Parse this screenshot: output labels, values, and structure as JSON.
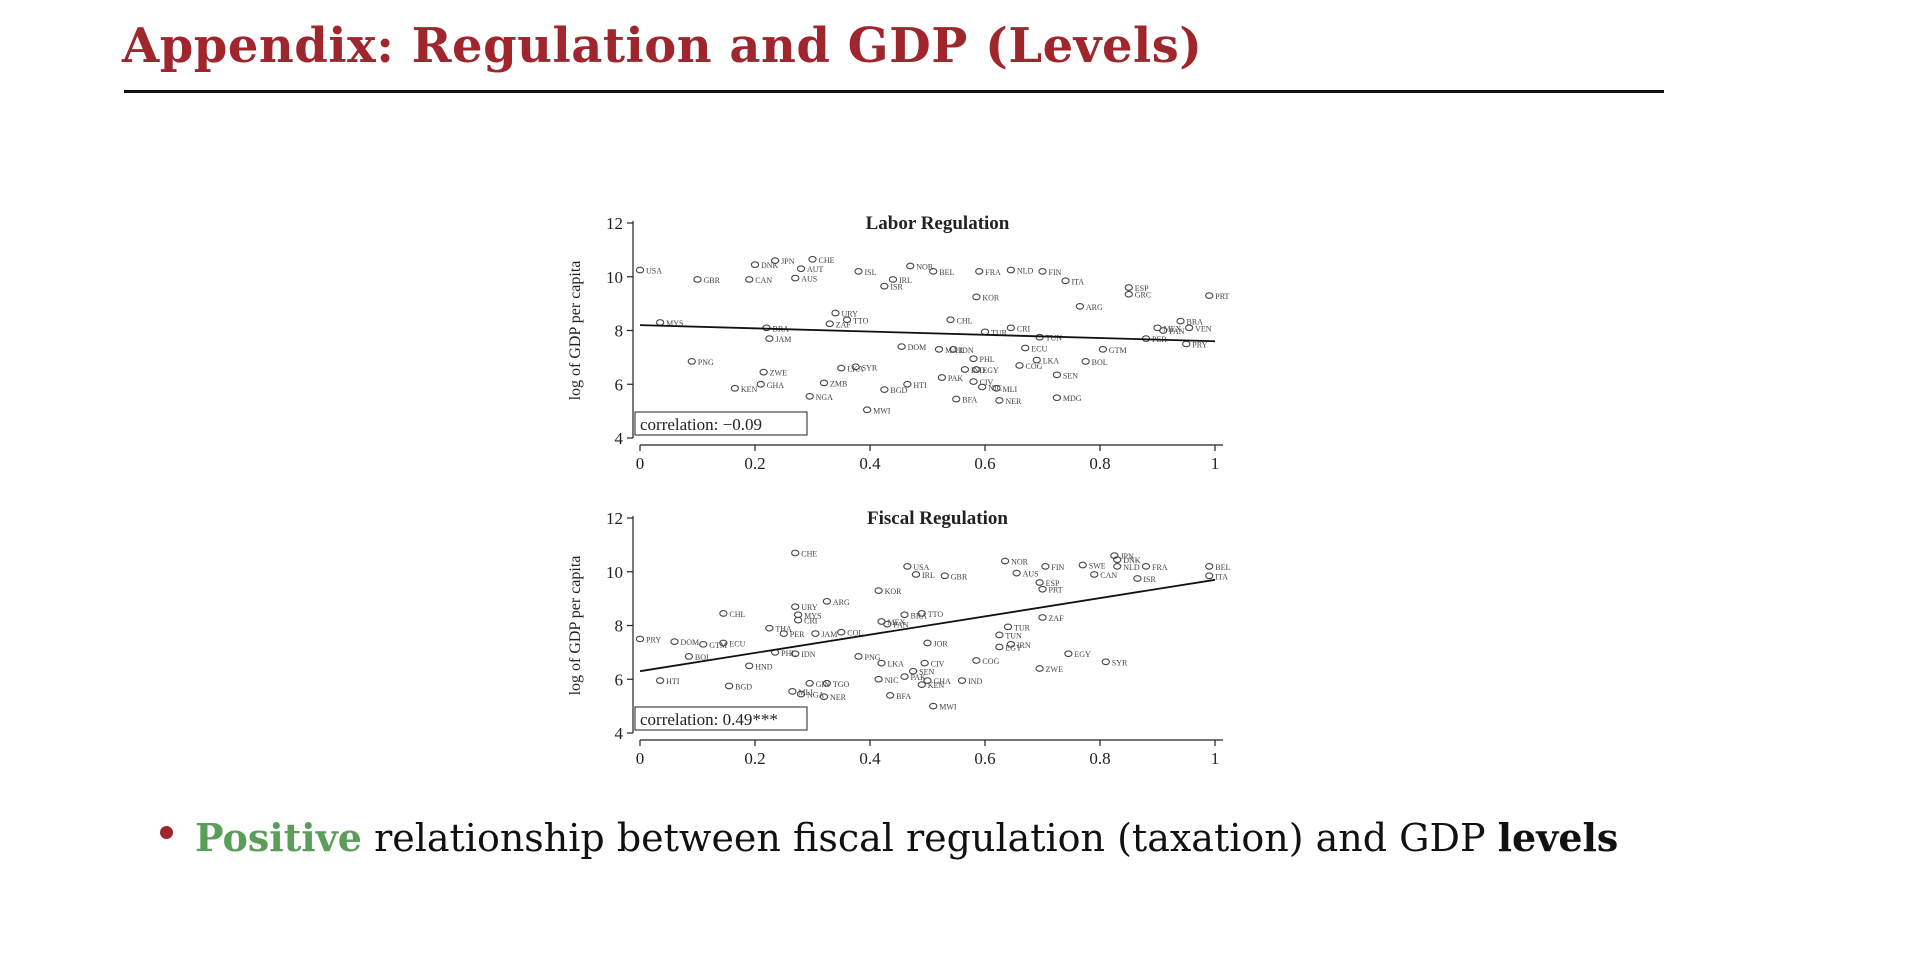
{
  "slide": {
    "title": "Appendix: Regulation and GDP (Levels)",
    "bullet": {
      "highlight": "Positive",
      "middle": " relationship between fiscal regulation (taxation) and GDP ",
      "bold_end": "levels"
    },
    "colors": {
      "title": "#a0262d",
      "highlight": "#5a9e5a"
    }
  },
  "chart_data": [
    {
      "type": "scatter",
      "title": "Labor Regulation",
      "ylabel": "log of GDP per capita",
      "xlim": [
        0,
        1
      ],
      "ylim": [
        4,
        12
      ],
      "xticks": [
        "0",
        "0.2",
        "0.4",
        "0.6",
        "0.8",
        "1"
      ],
      "yticks": [
        "4",
        "6",
        "8",
        "10",
        "12"
      ],
      "annotation": "correlation: −0.09",
      "fit_line": {
        "x": [
          0,
          1
        ],
        "y": [
          8.2,
          7.6
        ]
      },
      "points": [
        {
          "label": "USA",
          "x": 0.0,
          "y": 10.25
        },
        {
          "label": "GBR",
          "x": 0.1,
          "y": 9.9
        },
        {
          "label": "CAN",
          "x": 0.19,
          "y": 9.9
        },
        {
          "label": "DNK",
          "x": 0.2,
          "y": 10.45
        },
        {
          "label": "JPN",
          "x": 0.235,
          "y": 10.6
        },
        {
          "label": "AUT",
          "x": 0.28,
          "y": 10.3
        },
        {
          "label": "AUS",
          "x": 0.27,
          "y": 9.95
        },
        {
          "label": "CHE",
          "x": 0.3,
          "y": 10.65
        },
        {
          "label": "ISL",
          "x": 0.38,
          "y": 10.2
        },
        {
          "label": "IRL",
          "x": 0.44,
          "y": 9.9
        },
        {
          "label": "ISR",
          "x": 0.425,
          "y": 9.65
        },
        {
          "label": "NOR",
          "x": 0.47,
          "y": 10.4
        },
        {
          "label": "BEL",
          "x": 0.51,
          "y": 10.2
        },
        {
          "label": "FRA",
          "x": 0.59,
          "y": 10.2
        },
        {
          "label": "NLD",
          "x": 0.645,
          "y": 10.25
        },
        {
          "label": "FIN",
          "x": 0.7,
          "y": 10.2
        },
        {
          "label": "ITA",
          "x": 0.74,
          "y": 9.85
        },
        {
          "label": "ESP",
          "x": 0.85,
          "y": 9.6
        },
        {
          "label": "GRC",
          "x": 0.85,
          "y": 9.35
        },
        {
          "label": "KOR",
          "x": 0.585,
          "y": 9.25
        },
        {
          "label": "ARG",
          "x": 0.765,
          "y": 8.9
        },
        {
          "label": "PRT",
          "x": 0.99,
          "y": 9.3
        },
        {
          "label": "MYS",
          "x": 0.035,
          "y": 8.3
        },
        {
          "label": "URY",
          "x": 0.34,
          "y": 8.65
        },
        {
          "label": "TTO",
          "x": 0.36,
          "y": 8.4
        },
        {
          "label": "ZAF",
          "x": 0.33,
          "y": 8.25
        },
        {
          "label": "BRA",
          "x": 0.22,
          "y": 8.1
        },
        {
          "label": "JAM",
          "x": 0.225,
          "y": 7.7
        },
        {
          "label": "CHL",
          "x": 0.54,
          "y": 8.4
        },
        {
          "label": "TUR",
          "x": 0.6,
          "y": 7.95
        },
        {
          "label": "CRI",
          "x": 0.645,
          "y": 8.1
        },
        {
          "label": "TUN",
          "x": 0.695,
          "y": 7.75
        },
        {
          "label": "MEX",
          "x": 0.9,
          "y": 8.1
        },
        {
          "label": "PAN",
          "x": 0.91,
          "y": 8.0
        },
        {
          "label": "BRA",
          "x": 0.94,
          "y": 8.35
        },
        {
          "label": "VEN",
          "x": 0.955,
          "y": 8.1
        },
        {
          "label": "PER",
          "x": 0.88,
          "y": 7.7
        },
        {
          "label": "PRY",
          "x": 0.95,
          "y": 7.5
        },
        {
          "label": "DOM",
          "x": 0.455,
          "y": 7.4
        },
        {
          "label": "MAR",
          "x": 0.52,
          "y": 7.3
        },
        {
          "label": "IDN",
          "x": 0.545,
          "y": 7.3
        },
        {
          "label": "ECU",
          "x": 0.67,
          "y": 7.35
        },
        {
          "label": "GTM",
          "x": 0.805,
          "y": 7.3
        },
        {
          "label": "PHL",
          "x": 0.58,
          "y": 6.95
        },
        {
          "label": "COG",
          "x": 0.66,
          "y": 6.7
        },
        {
          "label": "LKA",
          "x": 0.69,
          "y": 6.9
        },
        {
          "label": "BOL",
          "x": 0.775,
          "y": 6.85
        },
        {
          "label": "IND",
          "x": 0.565,
          "y": 6.55
        },
        {
          "label": "EGY",
          "x": 0.585,
          "y": 6.55
        },
        {
          "label": "SEN",
          "x": 0.725,
          "y": 6.35
        },
        {
          "label": "PAK",
          "x": 0.525,
          "y": 6.25
        },
        {
          "label": "CIV",
          "x": 0.58,
          "y": 6.1
        },
        {
          "label": "NIC",
          "x": 0.595,
          "y": 5.9
        },
        {
          "label": "MLI",
          "x": 0.62,
          "y": 5.85
        },
        {
          "label": "HTI",
          "x": 0.465,
          "y": 6.0
        },
        {
          "label": "BGD",
          "x": 0.425,
          "y": 5.8
        },
        {
          "label": "NGA",
          "x": 0.295,
          "y": 5.55
        },
        {
          "label": "ZMB",
          "x": 0.32,
          "y": 6.05
        },
        {
          "label": "SYR",
          "x": 0.375,
          "y": 6.65
        },
        {
          "label": "LKA",
          "x": 0.35,
          "y": 6.6
        },
        {
          "label": "PNG",
          "x": 0.09,
          "y": 6.85
        },
        {
          "label": "ZWE",
          "x": 0.215,
          "y": 6.45
        },
        {
          "label": "GHA",
          "x": 0.21,
          "y": 6.0
        },
        {
          "label": "KEN",
          "x": 0.165,
          "y": 5.85
        },
        {
          "label": "MWI",
          "x": 0.395,
          "y": 5.05
        },
        {
          "label": "BFA",
          "x": 0.55,
          "y": 5.45
        },
        {
          "label": "NER",
          "x": 0.625,
          "y": 5.4
        },
        {
          "label": "MDG",
          "x": 0.725,
          "y": 5.5
        }
      ]
    },
    {
      "type": "scatter",
      "title": "Fiscal Regulation",
      "ylabel": "log of GDP per capita",
      "xlim": [
        0,
        1
      ],
      "ylim": [
        4,
        12
      ],
      "xticks": [
        "0",
        "0.2",
        "0.4",
        "0.6",
        "0.8",
        "1"
      ],
      "yticks": [
        "4",
        "6",
        "8",
        "10",
        "12"
      ],
      "annotation": "correlation: 0.49***",
      "fit_line": {
        "x": [
          0,
          1
        ],
        "y": [
          6.3,
          9.7
        ]
      },
      "points": [
        {
          "label": "CHE",
          "x": 0.27,
          "y": 10.7
        },
        {
          "label": "USA",
          "x": 0.465,
          "y": 10.2
        },
        {
          "label": "IRL",
          "x": 0.48,
          "y": 9.9
        },
        {
          "label": "GBR",
          "x": 0.53,
          "y": 9.85
        },
        {
          "label": "NOR",
          "x": 0.635,
          "y": 10.4
        },
        {
          "label": "AUS",
          "x": 0.655,
          "y": 9.95
        },
        {
          "label": "FIN",
          "x": 0.705,
          "y": 10.2
        },
        {
          "label": "ESP",
          "x": 0.695,
          "y": 9.6
        },
        {
          "label": "PRT",
          "x": 0.7,
          "y": 9.35
        },
        {
          "label": "SWE",
          "x": 0.77,
          "y": 10.25
        },
        {
          "label": "JPN",
          "x": 0.825,
          "y": 10.6
        },
        {
          "label": "DNK",
          "x": 0.83,
          "y": 10.45
        },
        {
          "label": "NLD",
          "x": 0.83,
          "y": 10.2
        },
        {
          "label": "CAN",
          "x": 0.79,
          "y": 9.9
        },
        {
          "label": "FRA",
          "x": 0.88,
          "y": 10.2
        },
        {
          "label": "ISR",
          "x": 0.865,
          "y": 9.75
        },
        {
          "label": "BEL",
          "x": 0.99,
          "y": 10.2
        },
        {
          "label": "ITA",
          "x": 0.99,
          "y": 9.85
        },
        {
          "label": "KOR",
          "x": 0.415,
          "y": 9.3
        },
        {
          "label": "ARG",
          "x": 0.325,
          "y": 8.9
        },
        {
          "label": "URY",
          "x": 0.27,
          "y": 8.7
        },
        {
          "label": "MYS",
          "x": 0.275,
          "y": 8.4
        },
        {
          "label": "CRI",
          "x": 0.275,
          "y": 8.2
        },
        {
          "label": "CHL",
          "x": 0.145,
          "y": 8.45
        },
        {
          "label": "BRA",
          "x": 0.46,
          "y": 8.4
        },
        {
          "label": "TTO",
          "x": 0.49,
          "y": 8.45
        },
        {
          "label": "MEX",
          "x": 0.42,
          "y": 8.15
        },
        {
          "label": "PAN",
          "x": 0.43,
          "y": 8.05
        },
        {
          "label": "ZAF",
          "x": 0.7,
          "y": 8.3
        },
        {
          "label": "TUR",
          "x": 0.64,
          "y": 7.95
        },
        {
          "label": "TUN",
          "x": 0.625,
          "y": 7.65
        },
        {
          "label": "IRN",
          "x": 0.645,
          "y": 7.3
        },
        {
          "label": "EGY",
          "x": 0.625,
          "y": 7.2
        },
        {
          "label": "EGY",
          "x": 0.745,
          "y": 6.95
        },
        {
          "label": "SYR",
          "x": 0.81,
          "y": 6.65
        },
        {
          "label": "ZWE",
          "x": 0.695,
          "y": 6.4
        },
        {
          "label": "JOR",
          "x": 0.5,
          "y": 7.35
        },
        {
          "label": "THA",
          "x": 0.225,
          "y": 7.9
        },
        {
          "label": "PER",
          "x": 0.25,
          "y": 7.7
        },
        {
          "label": "JAM",
          "x": 0.305,
          "y": 7.7
        },
        {
          "label": "COL",
          "x": 0.35,
          "y": 7.75
        },
        {
          "label": "PRY",
          "x": 0.0,
          "y": 7.5
        },
        {
          "label": "DOM",
          "x": 0.06,
          "y": 7.4
        },
        {
          "label": "GTM",
          "x": 0.11,
          "y": 7.3
        },
        {
          "label": "ECU",
          "x": 0.145,
          "y": 7.35
        },
        {
          "label": "BOL",
          "x": 0.085,
          "y": 6.85
        },
        {
          "label": "PHL",
          "x": 0.235,
          "y": 7.0
        },
        {
          "label": "IDN",
          "x": 0.27,
          "y": 6.95
        },
        {
          "label": "HND",
          "x": 0.19,
          "y": 6.5
        },
        {
          "label": "PNG",
          "x": 0.38,
          "y": 6.85
        },
        {
          "label": "LKA",
          "x": 0.42,
          "y": 6.6
        },
        {
          "label": "COG",
          "x": 0.585,
          "y": 6.7
        },
        {
          "label": "CIV",
          "x": 0.495,
          "y": 6.6
        },
        {
          "label": "SEN",
          "x": 0.475,
          "y": 6.3
        },
        {
          "label": "NIC",
          "x": 0.415,
          "y": 6.0
        },
        {
          "label": "PAK",
          "x": 0.46,
          "y": 6.1
        },
        {
          "label": "GHA",
          "x": 0.5,
          "y": 5.95
        },
        {
          "label": "IND",
          "x": 0.56,
          "y": 5.95
        },
        {
          "label": "KEN",
          "x": 0.49,
          "y": 5.8
        },
        {
          "label": "HTI",
          "x": 0.035,
          "y": 5.95
        },
        {
          "label": "BGD",
          "x": 0.155,
          "y": 5.75
        },
        {
          "label": "GIN",
          "x": 0.295,
          "y": 5.85
        },
        {
          "label": "TGO",
          "x": 0.325,
          "y": 5.85
        },
        {
          "label": "MLI",
          "x": 0.265,
          "y": 5.55
        },
        {
          "label": "NGA",
          "x": 0.28,
          "y": 5.45
        },
        {
          "label": "NER",
          "x": 0.32,
          "y": 5.35
        },
        {
          "label": "BFA",
          "x": 0.435,
          "y": 5.4
        },
        {
          "label": "MWI",
          "x": 0.51,
          "y": 5.0
        }
      ]
    }
  ]
}
